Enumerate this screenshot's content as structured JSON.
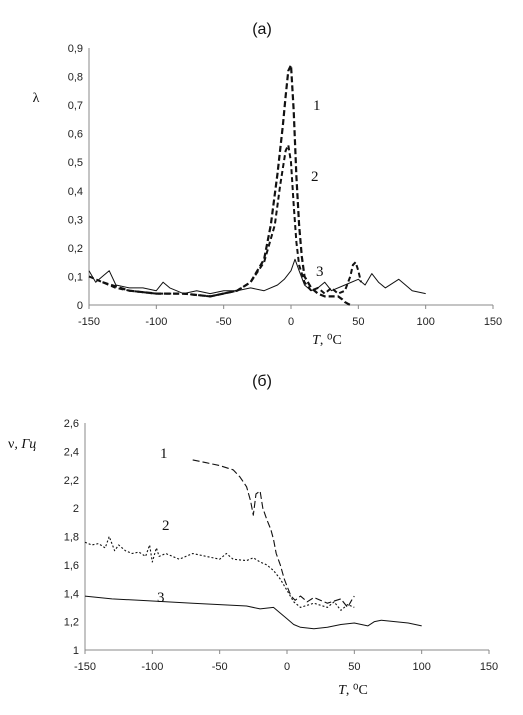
{
  "chart_data": [
    {
      "type": "line",
      "title": "(a)",
      "xlabel_var": "T",
      "xlabel_unit": ", ⁰C",
      "ylabel": "λ",
      "xlim": [
        -150,
        150
      ],
      "ylim": [
        0,
        0.9
      ],
      "x_ticks": [
        "-150",
        "-100",
        "-50",
        "0",
        "50",
        "100",
        "150"
      ],
      "y_ticks": [
        "0",
        "0,1",
        "0,2",
        "0,3",
        "0,4",
        "0,5",
        "0,6",
        "0,7",
        "0,8",
        "0,9"
      ],
      "grid": false,
      "series": [
        {
          "label": "1",
          "x": [
            -140,
            -120,
            -100,
            -80,
            -60,
            -40,
            -30,
            -20,
            -15,
            -10,
            -6,
            -4,
            -2,
            0,
            2,
            4,
            6,
            8,
            10,
            15,
            20,
            25,
            30,
            35,
            38,
            40,
            42,
            44
          ],
          "y": [
            0.08,
            0.05,
            0.04,
            0.04,
            0.03,
            0.05,
            0.08,
            0.16,
            0.28,
            0.46,
            0.63,
            0.73,
            0.82,
            0.84,
            0.68,
            0.45,
            0.28,
            0.17,
            0.1,
            0.06,
            0.04,
            0.03,
            0.03,
            0.03,
            0.02,
            0.01,
            0.005,
            0.0
          ]
        },
        {
          "label": "2",
          "x": [
            -150,
            -140,
            -130,
            -120,
            -100,
            -80,
            -60,
            -40,
            -30,
            -20,
            -12,
            -8,
            -4,
            -2,
            0,
            2,
            4,
            6,
            10,
            15,
            20,
            25,
            30,
            35,
            40,
            44,
            46,
            48,
            50,
            52
          ],
          "y": [
            0.1,
            0.08,
            0.06,
            0.05,
            0.04,
            0.04,
            0.03,
            0.05,
            0.08,
            0.15,
            0.28,
            0.42,
            0.54,
            0.56,
            0.5,
            0.35,
            0.22,
            0.14,
            0.08,
            0.05,
            0.06,
            0.04,
            0.06,
            0.04,
            0.05,
            0.1,
            0.14,
            0.15,
            0.12,
            0.08
          ]
        },
        {
          "label": "3",
          "x": [
            -150,
            -145,
            -140,
            -135,
            -130,
            -120,
            -110,
            -100,
            -95,
            -90,
            -85,
            -80,
            -70,
            -60,
            -50,
            -40,
            -30,
            -20,
            -10,
            -5,
            0,
            3,
            6,
            10,
            15,
            20,
            25,
            30,
            40,
            50,
            55,
            60,
            65,
            70,
            80,
            85,
            90,
            100
          ],
          "y": [
            0.12,
            0.08,
            0.1,
            0.12,
            0.07,
            0.06,
            0.06,
            0.05,
            0.08,
            0.06,
            0.05,
            0.04,
            0.05,
            0.04,
            0.05,
            0.05,
            0.06,
            0.05,
            0.07,
            0.09,
            0.12,
            0.16,
            0.12,
            0.07,
            0.05,
            0.06,
            0.08,
            0.05,
            0.07,
            0.09,
            0.07,
            0.11,
            0.08,
            0.06,
            0.09,
            0.07,
            0.05,
            0.04
          ]
        }
      ]
    },
    {
      "type": "line",
      "title": "(б)",
      "xlabel_var": "T",
      "xlabel_unit": ", ⁰C",
      "ylabel_var": "ν",
      "ylabel_unit": ", Гц",
      "xlim": [
        -150,
        150
      ],
      "ylim": [
        1,
        2.6
      ],
      "x_ticks": [
        "-150",
        "-100",
        "-50",
        "0",
        "50",
        "100",
        "150"
      ],
      "y_ticks": [
        "1",
        "1,2",
        "1,4",
        "1,6",
        "1,8",
        "2",
        "2,2",
        "2,4",
        "2,6"
      ],
      "grid": false,
      "series": [
        {
          "label": "1",
          "x": [
            -70,
            -60,
            -50,
            -40,
            -35,
            -30,
            -27,
            -25,
            -23,
            -20,
            -18,
            -15,
            -12,
            -10,
            -8,
            -5,
            -2,
            0,
            3,
            6,
            10,
            15,
            20,
            30,
            40,
            45,
            48,
            50
          ],
          "y": [
            2.34,
            2.32,
            2.3,
            2.27,
            2.22,
            2.15,
            2.05,
            1.95,
            2.1,
            2.12,
            2.0,
            1.92,
            1.85,
            1.78,
            1.68,
            1.6,
            1.5,
            1.45,
            1.38,
            1.35,
            1.38,
            1.34,
            1.37,
            1.33,
            1.36,
            1.3,
            1.35,
            1.38
          ]
        },
        {
          "label": "2",
          "x": [
            -150,
            -145,
            -140,
            -135,
            -132,
            -128,
            -125,
            -120,
            -115,
            -110,
            -105,
            -102,
            -100,
            -97,
            -95,
            -90,
            -85,
            -80,
            -70,
            -60,
            -50,
            -45,
            -40,
            -30,
            -25,
            -20,
            -15,
            -10,
            -5,
            0,
            5,
            10,
            20,
            30,
            35,
            40,
            45,
            50
          ],
          "y": [
            1.76,
            1.74,
            1.75,
            1.72,
            1.8,
            1.7,
            1.74,
            1.7,
            1.68,
            1.69,
            1.66,
            1.74,
            1.62,
            1.72,
            1.66,
            1.68,
            1.66,
            1.64,
            1.68,
            1.66,
            1.64,
            1.68,
            1.64,
            1.63,
            1.65,
            1.62,
            1.6,
            1.56,
            1.5,
            1.42,
            1.34,
            1.3,
            1.33,
            1.3,
            1.34,
            1.28,
            1.32,
            1.3
          ]
        },
        {
          "label": "3",
          "x": [
            -150,
            -130,
            -110,
            -90,
            -70,
            -50,
            -30,
            -20,
            -10,
            -5,
            0,
            5,
            10,
            20,
            30,
            40,
            50,
            60,
            65,
            70,
            80,
            90,
            100
          ],
          "y": [
            1.38,
            1.36,
            1.35,
            1.34,
            1.33,
            1.32,
            1.31,
            1.29,
            1.3,
            1.26,
            1.22,
            1.18,
            1.16,
            1.15,
            1.16,
            1.18,
            1.19,
            1.17,
            1.2,
            1.21,
            1.2,
            1.19,
            1.17
          ]
        }
      ]
    }
  ]
}
